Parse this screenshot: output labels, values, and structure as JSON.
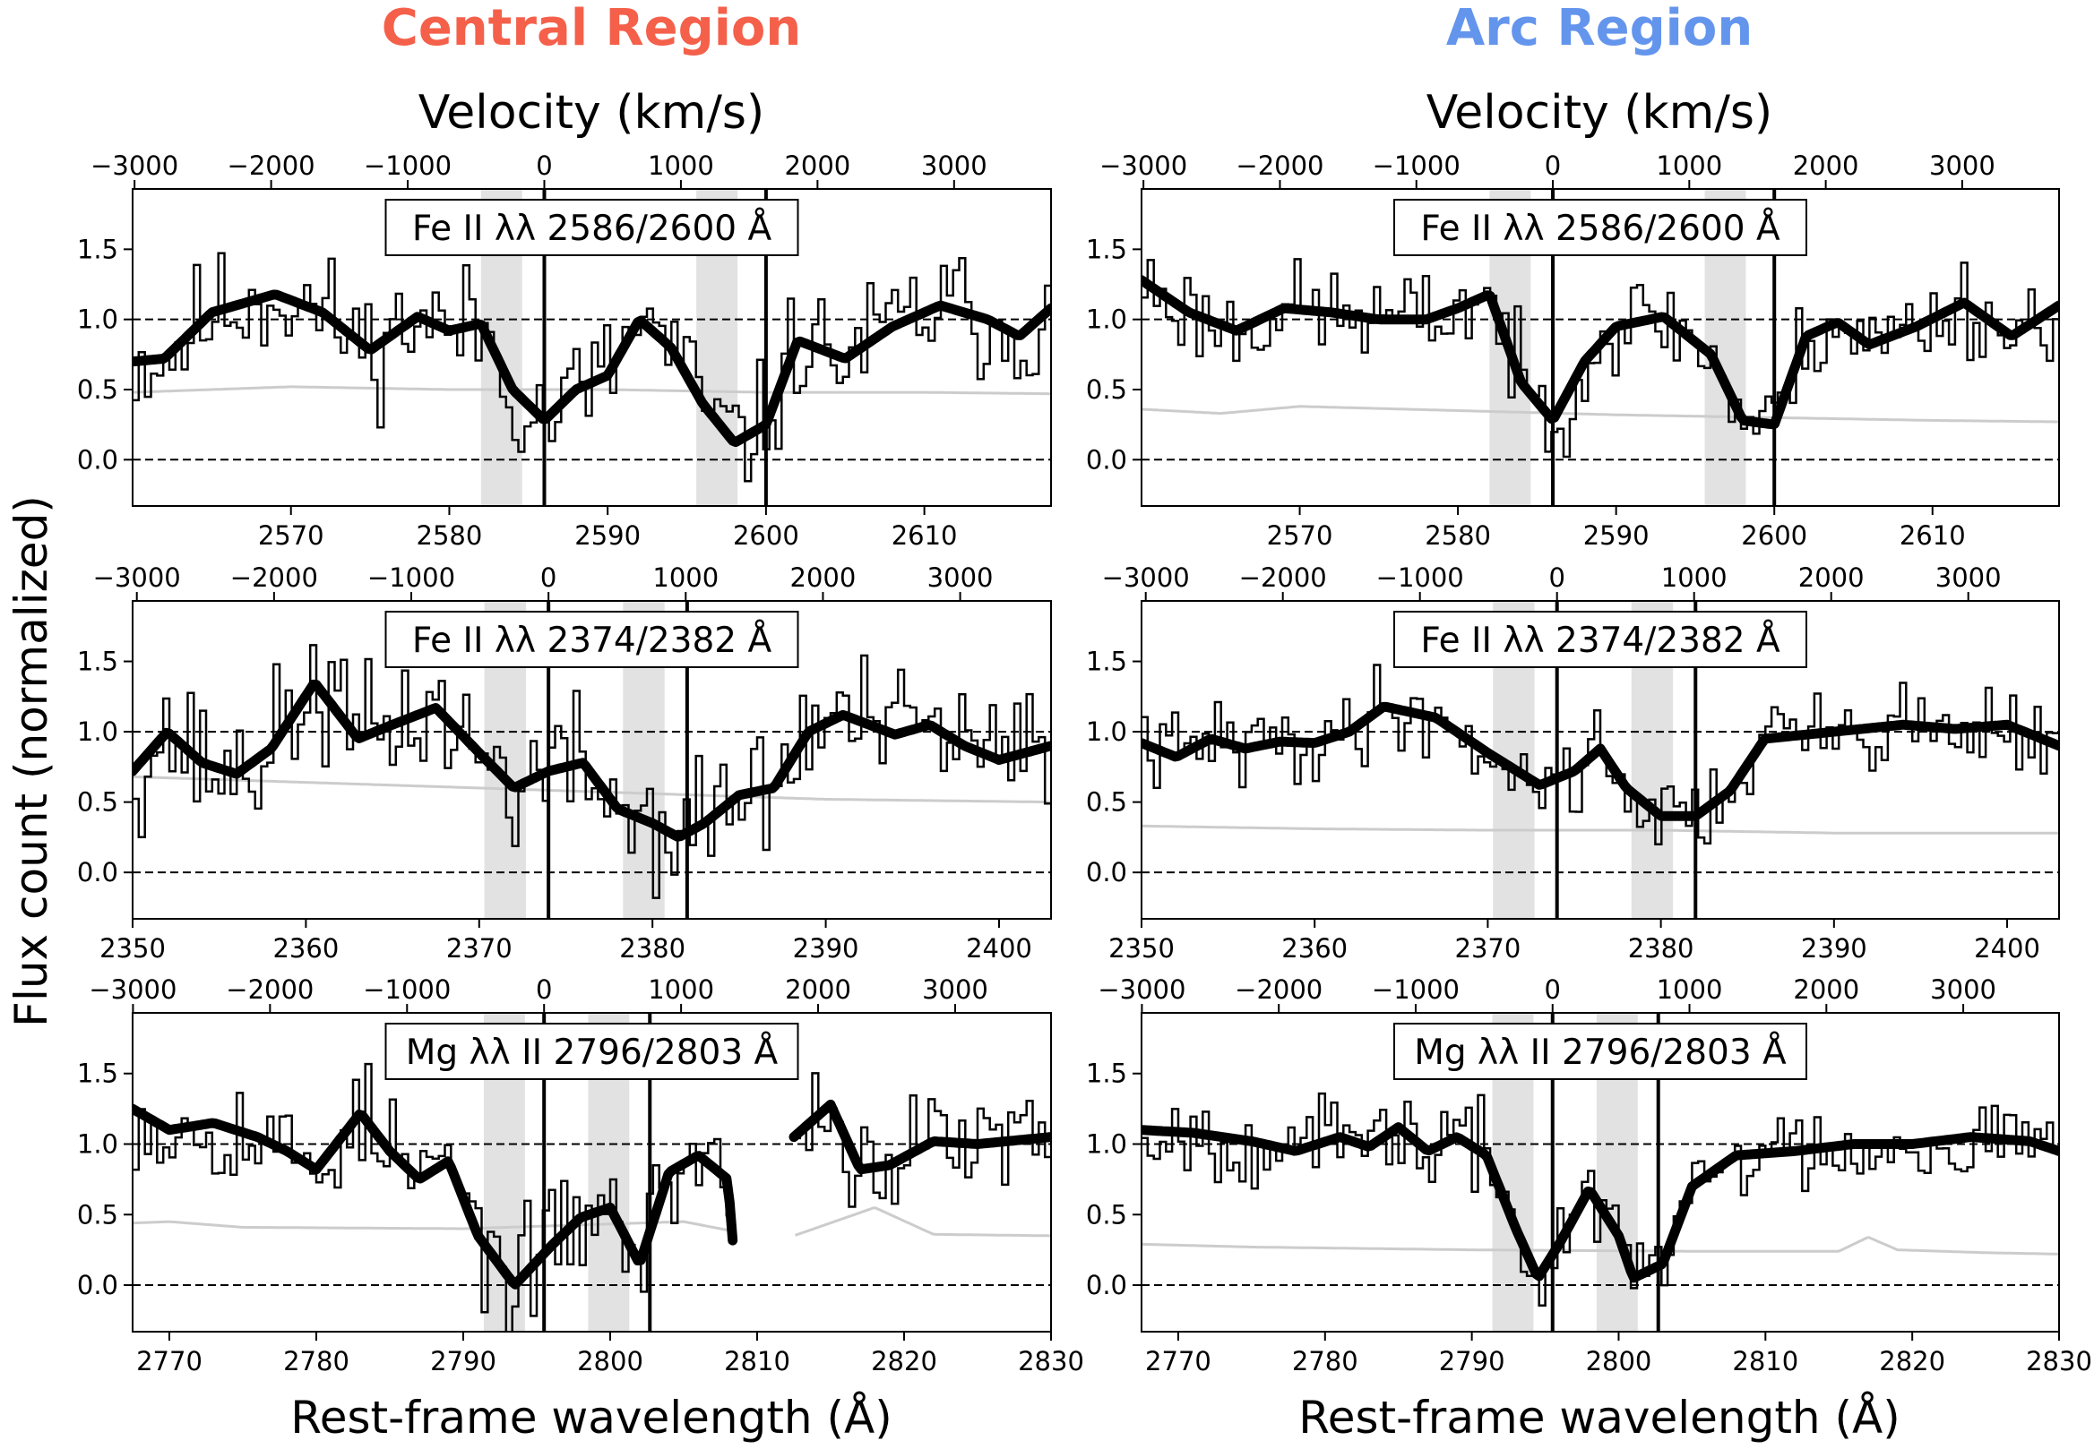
{
  "figure": {
    "column_titles": [
      {
        "text": "Central Region",
        "color": "#f4604a"
      },
      {
        "text": "Arc Region",
        "color": "#6495ed"
      }
    ],
    "velocity_title": "Velocity (km/s)",
    "ylabel": "Flux count (normalized)",
    "xlabel": "Rest-frame wavelength (Å)",
    "colors": {
      "data": "#000000",
      "model": "#000000",
      "error": "#cccccc",
      "band": "#e2e2e2",
      "ref_lines": "#000000"
    }
  },
  "chart_data": [
    {
      "type": "line",
      "panel": "Central Region / Fe II 2586",
      "row": 0,
      "col": 0,
      "label": "Fe II λλ 2586/2600 Å",
      "xlim": [
        2560,
        2618
      ],
      "ylim": [
        -0.33,
        1.93
      ],
      "xticks": [
        2570,
        2580,
        2590,
        2600,
        2610
      ],
      "yticks": [
        0.0,
        0.5,
        1.0,
        1.5
      ],
      "ytick_labels": [
        "0.0",
        "0.5",
        "1.0",
        "1.5"
      ],
      "velocity_zero": 2586.0,
      "velocity_ticks": [
        -3000,
        -2000,
        -1000,
        0,
        1000,
        2000,
        3000
      ],
      "velocity_tick_labels": [
        "−3000",
        "−2000",
        "−1000",
        "0",
        "1000",
        "2000",
        "3000"
      ],
      "line_centers": [
        2586.0,
        2600.0
      ],
      "shaded_bands": [
        [
          2582.0,
          2584.6
        ],
        [
          2595.6,
          2598.2
        ]
      ],
      "hlines": [
        0.0,
        1.0
      ],
      "model": {
        "x": [
          2560,
          2562,
          2565,
          2569,
          2572,
          2575,
          2578,
          2580,
          2582,
          2584,
          2586,
          2588,
          2590,
          2592,
          2594,
          2596,
          2598,
          2600,
          2602,
          2605,
          2608,
          2611,
          2614,
          2616,
          2618
        ],
        "y": [
          0.7,
          0.72,
          1.05,
          1.18,
          1.05,
          0.78,
          1.02,
          0.92,
          0.97,
          0.5,
          0.28,
          0.5,
          0.6,
          1.0,
          0.8,
          0.4,
          0.12,
          0.25,
          0.85,
          0.72,
          0.95,
          1.1,
          1.0,
          0.88,
          1.08
        ]
      },
      "error": {
        "x": [
          2560,
          2570,
          2580,
          2590,
          2600,
          2610,
          2618
        ],
        "y": [
          0.48,
          0.52,
          0.5,
          0.5,
          0.48,
          0.48,
          0.47
        ]
      },
      "data": {
        "seed": 11,
        "noise": 0.22
      }
    },
    {
      "type": "line",
      "panel": "Arc Region / Fe II 2586",
      "row": 0,
      "col": 1,
      "label": "Fe II λλ 2586/2600 Å",
      "xlim": [
        2560,
        2618
      ],
      "ylim": [
        -0.33,
        1.93
      ],
      "xticks": [
        2570,
        2580,
        2590,
        2600,
        2610
      ],
      "yticks": [
        0.0,
        0.5,
        1.0,
        1.5
      ],
      "ytick_labels": [
        "0.0",
        "0.5",
        "1.0",
        "1.5"
      ],
      "velocity_zero": 2586.0,
      "velocity_ticks": [
        -3000,
        -2000,
        -1000,
        0,
        1000,
        2000,
        3000
      ],
      "velocity_tick_labels": [
        "−3000",
        "−2000",
        "−1000",
        "0",
        "1000",
        "2000",
        "3000"
      ],
      "line_centers": [
        2586.0,
        2600.0
      ],
      "shaded_bands": [
        [
          2582.0,
          2584.6
        ],
        [
          2595.6,
          2598.2
        ]
      ],
      "hlines": [
        0.0,
        1.0
      ],
      "model": {
        "x": [
          2560,
          2563,
          2566,
          2569,
          2572,
          2575,
          2578,
          2580,
          2582,
          2584,
          2586,
          2588,
          2590,
          2593,
          2596,
          2598,
          2600,
          2602,
          2604,
          2606,
          2609,
          2612,
          2615,
          2618
        ],
        "y": [
          1.28,
          1.05,
          0.92,
          1.08,
          1.05,
          1.0,
          1.0,
          1.08,
          1.18,
          0.55,
          0.28,
          0.7,
          0.95,
          1.02,
          0.75,
          0.28,
          0.25,
          0.88,
          0.98,
          0.82,
          0.95,
          1.12,
          0.88,
          1.1
        ]
      },
      "error": {
        "x": [
          2560,
          2565,
          2570,
          2580,
          2590,
          2600,
          2610,
          2618
        ],
        "y": [
          0.36,
          0.33,
          0.38,
          0.35,
          0.32,
          0.3,
          0.28,
          0.27
        ]
      },
      "data": {
        "seed": 23,
        "noise": 0.17
      }
    },
    {
      "type": "line",
      "panel": "Central Region / Fe II 2374",
      "row": 1,
      "col": 0,
      "label": "Fe II λλ 2374/2382 Å",
      "xlim": [
        2350,
        2403
      ],
      "ylim": [
        -0.33,
        1.93
      ],
      "xticks": [
        2350,
        2360,
        2370,
        2380,
        2390,
        2400
      ],
      "yticks": [
        0.0,
        0.5,
        1.0,
        1.5
      ],
      "ytick_labels": [
        "0.0",
        "0.5",
        "1.0",
        "1.5"
      ],
      "velocity_zero": 2374.0,
      "velocity_ticks": [
        -3000,
        -2000,
        -1000,
        0,
        1000,
        2000,
        3000
      ],
      "velocity_tick_labels": [
        "−3000",
        "−2000",
        "−1000",
        "0",
        "1000",
        "2000",
        "3000"
      ],
      "line_centers": [
        2374.0,
        2382.0
      ],
      "shaded_bands": [
        [
          2370.3,
          2372.7
        ],
        [
          2378.3,
          2380.7
        ]
      ],
      "hlines": [
        0.0,
        1.0
      ],
      "model": {
        "x": [
          2350,
          2352,
          2354,
          2356,
          2358,
          2360.5,
          2363,
          2365,
          2367.5,
          2370,
          2372,
          2374,
          2376,
          2378,
          2380,
          2381.5,
          2383,
          2385,
          2387,
          2389,
          2391,
          2394,
          2396,
          2398,
          2400,
          2403
        ],
        "y": [
          0.72,
          1.0,
          0.78,
          0.7,
          0.88,
          1.35,
          0.95,
          1.05,
          1.17,
          0.85,
          0.6,
          0.72,
          0.78,
          0.45,
          0.35,
          0.25,
          0.35,
          0.55,
          0.6,
          1.0,
          1.12,
          0.98,
          1.05,
          0.9,
          0.8,
          0.9
        ]
      },
      "error": {
        "x": [
          2350,
          2360,
          2370,
          2380,
          2390,
          2403
        ],
        "y": [
          0.68,
          0.64,
          0.6,
          0.56,
          0.52,
          0.5
        ]
      },
      "data": {
        "seed": 37,
        "noise": 0.24
      }
    },
    {
      "type": "line",
      "panel": "Arc Region / Fe II 2374",
      "row": 1,
      "col": 1,
      "label": "Fe II λλ 2374/2382 Å",
      "xlim": [
        2350,
        2403
      ],
      "ylim": [
        -0.33,
        1.93
      ],
      "xticks": [
        2350,
        2360,
        2370,
        2380,
        2390,
        2400
      ],
      "yticks": [
        0.0,
        0.5,
        1.0,
        1.5
      ],
      "ytick_labels": [
        "0.0",
        "0.5",
        "1.0",
        "1.5"
      ],
      "velocity_zero": 2374.0,
      "velocity_ticks": [
        -3000,
        -2000,
        -1000,
        0,
        1000,
        2000,
        3000
      ],
      "velocity_tick_labels": [
        "−3000",
        "−2000",
        "−1000",
        "0",
        "1000",
        "2000",
        "3000"
      ],
      "line_centers": [
        2374.0,
        2382.0
      ],
      "shaded_bands": [
        [
          2370.3,
          2372.7
        ],
        [
          2378.3,
          2380.7
        ]
      ],
      "hlines": [
        0.0,
        1.0
      ],
      "model": {
        "x": [
          2350,
          2352,
          2354,
          2356,
          2358,
          2360,
          2362,
          2364,
          2367,
          2370,
          2373,
          2375,
          2376.5,
          2378,
          2380,
          2382,
          2384,
          2386,
          2390,
          2394,
          2397,
          2400,
          2403
        ],
        "y": [
          0.92,
          0.82,
          0.95,
          0.88,
          0.93,
          0.92,
          1.0,
          1.18,
          1.1,
          0.85,
          0.62,
          0.72,
          0.88,
          0.6,
          0.4,
          0.4,
          0.58,
          0.95,
          1.0,
          1.05,
          1.02,
          1.05,
          0.9
        ]
      },
      "error": {
        "x": [
          2350,
          2360,
          2370,
          2380,
          2390,
          2403
        ],
        "y": [
          0.33,
          0.31,
          0.3,
          0.3,
          0.28,
          0.28
        ]
      },
      "data": {
        "seed": 41,
        "noise": 0.15
      }
    },
    {
      "type": "line",
      "panel": "Central Region / Mg II 2796",
      "row": 2,
      "col": 0,
      "label": "Mg λλ II 2796/2803 Å",
      "xlim": [
        2767.5,
        2830
      ],
      "ylim": [
        -0.33,
        1.93
      ],
      "xticks": [
        2770,
        2780,
        2790,
        2800,
        2810,
        2820,
        2830
      ],
      "yticks": [
        0.0,
        0.5,
        1.0,
        1.5
      ],
      "ytick_labels": [
        "0.0",
        "0.5",
        "1.0",
        "1.5"
      ],
      "velocity_zero": 2795.5,
      "velocity_ticks": [
        -3000,
        -2000,
        -1000,
        0,
        1000,
        2000,
        3000
      ],
      "velocity_tick_labels": [
        "−3000",
        "−2000",
        "−1000",
        "0",
        "1000",
        "2000",
        "3000"
      ],
      "line_centers": [
        2795.5,
        2802.7
      ],
      "shaded_bands": [
        [
          2791.4,
          2794.2
        ],
        [
          2798.5,
          2801.3
        ]
      ],
      "hlines": [
        0.0,
        1.0
      ],
      "gap": [
        2808.5,
        2812.5
      ],
      "model": {
        "x": [
          2767.5,
          2770,
          2773,
          2776,
          2778,
          2780,
          2783,
          2785,
          2787,
          2789,
          2791,
          2793.5,
          2796,
          2798,
          2800,
          2802,
          2804,
          2806,
          2808,
          2808.5,
          2812.5,
          2815,
          2817,
          2819,
          2822,
          2825,
          2830
        ],
        "y": [
          1.25,
          1.1,
          1.15,
          1.05,
          0.95,
          0.82,
          1.22,
          0.95,
          0.75,
          0.88,
          0.35,
          0.0,
          0.28,
          0.48,
          0.55,
          0.15,
          0.8,
          0.92,
          0.75,
          0.1,
          1.05,
          1.28,
          0.82,
          0.85,
          1.02,
          1.0,
          1.05
        ]
      },
      "error": {
        "x": [
          2767.5,
          2770,
          2775,
          2790,
          2805,
          2808.5,
          2812.5,
          2818,
          2822,
          2830
        ],
        "y": [
          0.44,
          0.45,
          0.41,
          0.4,
          0.45,
          0.38,
          0.35,
          0.55,
          0.36,
          0.35
        ]
      },
      "data": {
        "seed": 53,
        "noise": 0.2
      }
    },
    {
      "type": "line",
      "panel": "Arc Region / Mg II 2796",
      "row": 2,
      "col": 1,
      "label": "Mg λλ II 2796/2803 Å",
      "xlim": [
        2767.5,
        2830
      ],
      "ylim": [
        -0.33,
        1.93
      ],
      "xticks": [
        2770,
        2780,
        2790,
        2800,
        2810,
        2820,
        2830
      ],
      "yticks": [
        0.0,
        0.5,
        1.0,
        1.5
      ],
      "ytick_labels": [
        "0.0",
        "0.5",
        "1.0",
        "1.5"
      ],
      "velocity_zero": 2795.5,
      "velocity_ticks": [
        -3000,
        -2000,
        -1000,
        0,
        1000,
        2000,
        3000
      ],
      "velocity_tick_labels": [
        "−3000",
        "−2000",
        "−1000",
        "0",
        "1000",
        "2000",
        "3000"
      ],
      "line_centers": [
        2795.5,
        2802.7
      ],
      "shaded_bands": [
        [
          2791.4,
          2794.2
        ],
        [
          2798.5,
          2801.3
        ]
      ],
      "hlines": [
        0.0,
        1.0
      ],
      "model": {
        "x": [
          2767.5,
          2771,
          2775,
          2778,
          2781,
          2783,
          2785,
          2787,
          2789,
          2791,
          2793,
          2794.5,
          2796,
          2798,
          2800,
          2801,
          2803,
          2805,
          2808,
          2812,
          2816,
          2820,
          2824,
          2828,
          2830
        ],
        "y": [
          1.1,
          1.08,
          1.02,
          0.95,
          1.05,
          0.98,
          1.12,
          0.95,
          1.05,
          0.92,
          0.4,
          0.05,
          0.3,
          0.68,
          0.35,
          0.05,
          0.15,
          0.7,
          0.92,
          0.95,
          1.0,
          1.0,
          1.05,
          1.02,
          0.95
        ]
      },
      "error": {
        "x": [
          2767.5,
          2775,
          2790,
          2805,
          2815,
          2817,
          2819,
          2825,
          2830
        ],
        "y": [
          0.29,
          0.27,
          0.25,
          0.24,
          0.24,
          0.34,
          0.25,
          0.23,
          0.22
        ]
      },
      "data": {
        "seed": 67,
        "noise": 0.15
      }
    }
  ]
}
